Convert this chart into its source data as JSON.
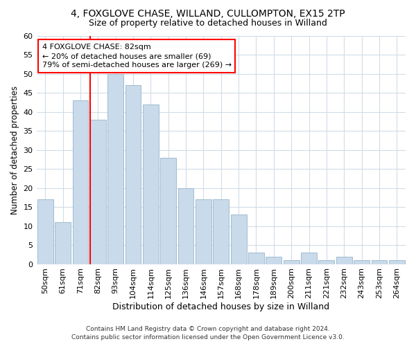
{
  "title1": "4, FOXGLOVE CHASE, WILLAND, CULLOMPTON, EX15 2TP",
  "title2": "Size of property relative to detached houses in Willand",
  "xlabel": "Distribution of detached houses by size in Willand",
  "ylabel": "Number of detached properties",
  "categories": [
    "50sqm",
    "61sqm",
    "71sqm",
    "82sqm",
    "93sqm",
    "104sqm",
    "114sqm",
    "125sqm",
    "136sqm",
    "146sqm",
    "157sqm",
    "168sqm",
    "178sqm",
    "189sqm",
    "200sqm",
    "211sqm",
    "221sqm",
    "232sqm",
    "243sqm",
    "253sqm",
    "264sqm"
  ],
  "values": [
    17,
    11,
    43,
    38,
    50,
    47,
    42,
    28,
    20,
    17,
    17,
    13,
    3,
    2,
    1,
    3,
    1,
    2,
    1,
    1,
    1
  ],
  "bar_color": "#c9daea",
  "bar_edge_color": "#a0bcd0",
  "red_line_index": 3,
  "annotation_line1": "4 FOXGLOVE CHASE: 82sqm",
  "annotation_line2": "← 20% of detached houses are smaller (69)",
  "annotation_line3": "79% of semi-detached houses are larger (269) →",
  "ylim": [
    0,
    60
  ],
  "yticks": [
    0,
    5,
    10,
    15,
    20,
    25,
    30,
    35,
    40,
    45,
    50,
    55,
    60
  ],
  "footer1": "Contains HM Land Registry data © Crown copyright and database right 2024.",
  "footer2": "Contains public sector information licensed under the Open Government Licence v3.0.",
  "bg_color": "#ffffff",
  "plot_bg_color": "#ffffff",
  "grid_color": "#d0dce8"
}
